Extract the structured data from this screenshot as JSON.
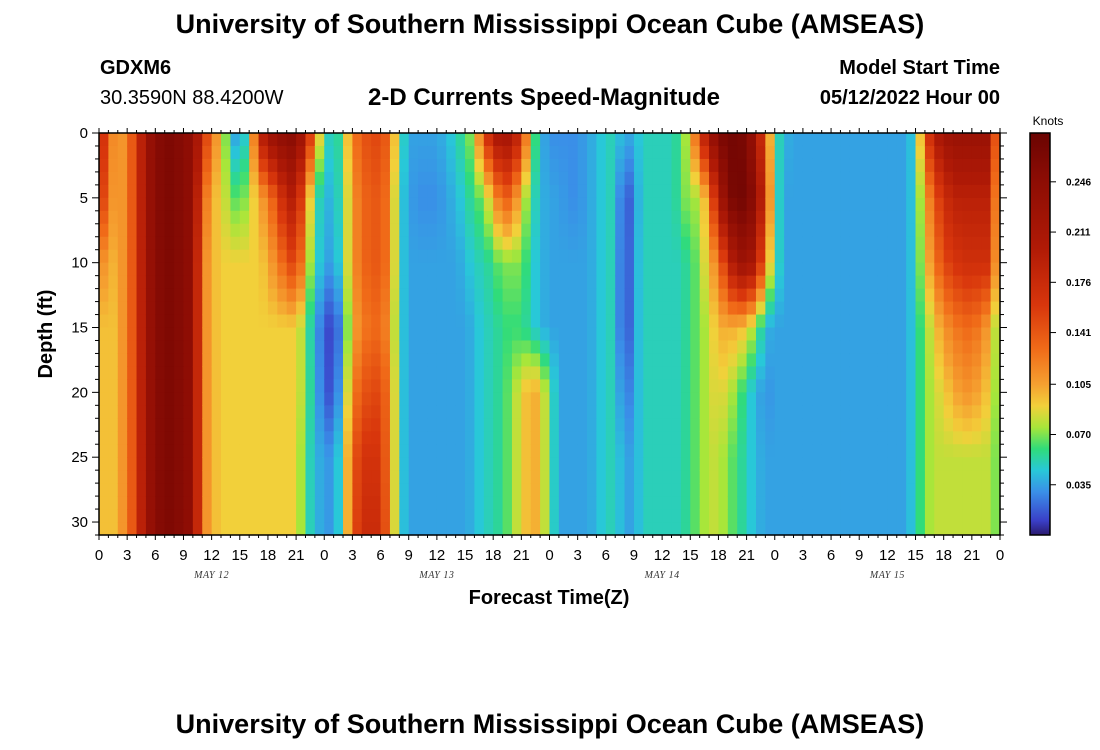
{
  "page": {
    "title": "University of Southern Mississippi Ocean Cube (AMSEAS)",
    "title_repeat": "University of Southern Mississippi Ocean Cube (AMSEAS)",
    "station_id": "GDXM6",
    "coordinates": "30.3590N  88.4200W",
    "model_start_label": "Model Start Time",
    "model_start_value": "05/12/2022 Hour 00"
  },
  "chart_data": {
    "type": "heatmap",
    "title": "2-D Currents Speed-Magnitude",
    "xlabel": "Forecast Time(Z)",
    "ylabel": "Depth (ft)",
    "x_tick_labels": [
      "0",
      "3",
      "6",
      "9",
      "12",
      "15",
      "18",
      "21",
      "0",
      "3",
      "6",
      "9",
      "12",
      "15",
      "18",
      "21",
      "0",
      "3",
      "6",
      "9",
      "12",
      "15",
      "18",
      "21",
      "0",
      "3",
      "6",
      "9",
      "12",
      "15",
      "18",
      "21",
      "0"
    ],
    "x_hours_range": [
      0,
      96
    ],
    "day_labels": [
      {
        "label": "MAY 12",
        "hour": 12
      },
      {
        "label": "MAY 13",
        "hour": 36
      },
      {
        "label": "MAY 14",
        "hour": 60
      },
      {
        "label": "MAY 15",
        "hour": 84
      }
    ],
    "y_ticks": [
      0,
      5,
      10,
      15,
      20,
      25,
      30
    ],
    "y_tick_labels": [
      "0",
      "5",
      "10",
      "15",
      "20",
      "25",
      "30"
    ],
    "ylim": [
      0,
      31
    ],
    "y_inverted": true,
    "colorbar": {
      "unit": "Knots",
      "ticks": [
        0.035,
        0.07,
        0.105,
        0.141,
        0.176,
        0.211,
        0.246
      ],
      "tick_labels": [
        "0.035",
        "0.070",
        "0.105",
        "0.141",
        "0.176",
        "0.211",
        "0.246"
      ],
      "vmin": 0.0,
      "vmax": 0.28
    },
    "colormap_stops": [
      {
        "v": 0.0,
        "color": "#2a1a6e"
      },
      {
        "v": 0.01,
        "color": "#3a3fc8"
      },
      {
        "v": 0.03,
        "color": "#3a8fe8"
      },
      {
        "v": 0.045,
        "color": "#28c8d8"
      },
      {
        "v": 0.06,
        "color": "#30dc7a"
      },
      {
        "v": 0.075,
        "color": "#a8e63a"
      },
      {
        "v": 0.09,
        "color": "#f2d03a"
      },
      {
        "v": 0.105,
        "color": "#f5a030"
      },
      {
        "v": 0.13,
        "color": "#f06a18"
      },
      {
        "v": 0.16,
        "color": "#d8360c"
      },
      {
        "v": 0.2,
        "color": "#b01a06"
      },
      {
        "v": 0.25,
        "color": "#8a0c04"
      },
      {
        "v": 0.28,
        "color": "#6a0402"
      }
    ],
    "depths_ft": [
      0,
      5,
      10,
      15,
      20,
      25,
      31
    ],
    "times_hours": [
      0,
      1,
      2,
      3,
      4,
      5,
      6,
      7,
      8,
      9,
      10,
      11,
      12,
      13,
      14,
      15,
      16,
      17,
      18,
      19,
      20,
      21,
      22,
      23,
      24,
      25,
      26,
      27,
      28,
      29,
      30,
      31,
      32,
      33,
      34,
      35,
      36,
      37,
      38,
      39,
      40,
      41,
      42,
      43,
      44,
      45,
      46,
      47,
      48,
      49,
      50,
      51,
      52,
      53,
      54,
      55,
      56,
      57,
      58,
      59,
      60,
      61,
      62,
      63,
      64,
      65,
      66,
      67,
      68,
      69,
      70,
      71,
      72,
      73,
      74,
      75,
      76,
      77,
      78,
      79,
      80,
      81,
      82,
      83,
      84,
      85,
      86,
      87,
      88,
      89,
      90,
      91,
      92,
      93,
      94,
      95,
      96
    ],
    "speed_knots_by_depth": [
      [
        0.2,
        0.13,
        0.1,
        0.12,
        0.16,
        0.22,
        0.25,
        0.26,
        0.26,
        0.25,
        0.24,
        0.18,
        0.12,
        0.1,
        0.04,
        0.03,
        0.06,
        0.18,
        0.22,
        0.24,
        0.25,
        0.25,
        0.2,
        0.12,
        0.06,
        0.04,
        0.07,
        0.12,
        0.14,
        0.15,
        0.15,
        0.13,
        0.06,
        0.035,
        0.035,
        0.035,
        0.035,
        0.04,
        0.05,
        0.06,
        0.08,
        0.15,
        0.2,
        0.22,
        0.21,
        0.17,
        0.08,
        0.04,
        0.03,
        0.03,
        0.03,
        0.03,
        0.035,
        0.04,
        0.05,
        0.05,
        0.035,
        0.04,
        0.05,
        0.05,
        0.05,
        0.05,
        0.06,
        0.09,
        0.16,
        0.22,
        0.26,
        0.27,
        0.27,
        0.26,
        0.22,
        0.14,
        0.06,
        0.04,
        0.035,
        0.035,
        0.035,
        0.035,
        0.035,
        0.035,
        0.035,
        0.035,
        0.035,
        0.035,
        0.035,
        0.035,
        0.035,
        0.05,
        0.14,
        0.2,
        0.22,
        0.23,
        0.23,
        0.23,
        0.23,
        0.23,
        0.06
      ],
      [
        0.18,
        0.12,
        0.1,
        0.12,
        0.16,
        0.22,
        0.25,
        0.26,
        0.26,
        0.25,
        0.24,
        0.14,
        0.1,
        0.09,
        0.07,
        0.06,
        0.08,
        0.1,
        0.12,
        0.15,
        0.19,
        0.2,
        0.12,
        0.06,
        0.04,
        0.04,
        0.06,
        0.11,
        0.13,
        0.14,
        0.14,
        0.12,
        0.05,
        0.035,
        0.03,
        0.03,
        0.03,
        0.035,
        0.04,
        0.05,
        0.06,
        0.07,
        0.1,
        0.14,
        0.13,
        0.09,
        0.06,
        0.04,
        0.035,
        0.035,
        0.03,
        0.03,
        0.035,
        0.04,
        0.05,
        0.05,
        0.008,
        0.03,
        0.05,
        0.05,
        0.05,
        0.05,
        0.06,
        0.08,
        0.07,
        0.12,
        0.2,
        0.26,
        0.27,
        0.27,
        0.24,
        0.16,
        0.06,
        0.035,
        0.035,
        0.035,
        0.035,
        0.035,
        0.035,
        0.035,
        0.035,
        0.035,
        0.035,
        0.035,
        0.035,
        0.035,
        0.035,
        0.05,
        0.1,
        0.14,
        0.17,
        0.19,
        0.19,
        0.19,
        0.19,
        0.19,
        0.06
      ],
      [
        0.12,
        0.1,
        0.1,
        0.12,
        0.16,
        0.22,
        0.25,
        0.26,
        0.26,
        0.25,
        0.24,
        0.12,
        0.1,
        0.09,
        0.09,
        0.09,
        0.09,
        0.09,
        0.1,
        0.12,
        0.14,
        0.16,
        0.1,
        0.05,
        0.04,
        0.03,
        0.06,
        0.11,
        0.13,
        0.14,
        0.14,
        0.12,
        0.05,
        0.035,
        0.035,
        0.035,
        0.035,
        0.035,
        0.035,
        0.04,
        0.05,
        0.05,
        0.06,
        0.07,
        0.07,
        0.07,
        0.05,
        0.04,
        0.035,
        0.035,
        0.035,
        0.035,
        0.035,
        0.04,
        0.05,
        0.05,
        0.005,
        0.035,
        0.05,
        0.05,
        0.05,
        0.05,
        0.05,
        0.06,
        0.07,
        0.1,
        0.12,
        0.18,
        0.22,
        0.23,
        0.2,
        0.12,
        0.06,
        0.035,
        0.035,
        0.035,
        0.035,
        0.035,
        0.035,
        0.035,
        0.035,
        0.035,
        0.035,
        0.035,
        0.035,
        0.035,
        0.035,
        0.05,
        0.09,
        0.12,
        0.15,
        0.16,
        0.17,
        0.17,
        0.17,
        0.17,
        0.06
      ],
      [
        0.1,
        0.09,
        0.1,
        0.12,
        0.16,
        0.22,
        0.25,
        0.26,
        0.26,
        0.25,
        0.24,
        0.12,
        0.1,
        0.09,
        0.09,
        0.09,
        0.09,
        0.09,
        0.09,
        0.09,
        0.09,
        0.09,
        0.07,
        0.035,
        0.02,
        0.005,
        0.04,
        0.1,
        0.12,
        0.13,
        0.13,
        0.11,
        0.05,
        0.035,
        0.035,
        0.035,
        0.035,
        0.035,
        0.035,
        0.035,
        0.04,
        0.05,
        0.05,
        0.06,
        0.06,
        0.06,
        0.05,
        0.04,
        0.035,
        0.035,
        0.035,
        0.035,
        0.035,
        0.04,
        0.05,
        0.05,
        0.005,
        0.035,
        0.05,
        0.05,
        0.05,
        0.05,
        0.05,
        0.06,
        0.07,
        0.08,
        0.1,
        0.1,
        0.1,
        0.09,
        0.07,
        0.04,
        0.035,
        0.035,
        0.035,
        0.035,
        0.035,
        0.035,
        0.035,
        0.035,
        0.035,
        0.035,
        0.035,
        0.035,
        0.035,
        0.035,
        0.035,
        0.05,
        0.07,
        0.09,
        0.11,
        0.12,
        0.13,
        0.13,
        0.12,
        0.1,
        0.06
      ],
      [
        0.1,
        0.09,
        0.1,
        0.12,
        0.16,
        0.22,
        0.25,
        0.26,
        0.26,
        0.25,
        0.24,
        0.12,
        0.1,
        0.09,
        0.09,
        0.09,
        0.09,
        0.09,
        0.09,
        0.09,
        0.09,
        0.09,
        0.07,
        0.04,
        0.02,
        0.01,
        0.05,
        0.12,
        0.14,
        0.15,
        0.15,
        0.12,
        0.05,
        0.035,
        0.035,
        0.035,
        0.035,
        0.035,
        0.035,
        0.035,
        0.04,
        0.05,
        0.05,
        0.06,
        0.07,
        0.09,
        0.1,
        0.1,
        0.06,
        0.035,
        0.035,
        0.035,
        0.035,
        0.04,
        0.05,
        0.05,
        0.02,
        0.035,
        0.05,
        0.05,
        0.05,
        0.05,
        0.05,
        0.06,
        0.07,
        0.08,
        0.09,
        0.08,
        0.07,
        0.05,
        0.04,
        0.03,
        0.035,
        0.035,
        0.035,
        0.035,
        0.035,
        0.035,
        0.035,
        0.035,
        0.035,
        0.035,
        0.035,
        0.035,
        0.035,
        0.035,
        0.035,
        0.05,
        0.07,
        0.08,
        0.09,
        0.1,
        0.11,
        0.11,
        0.1,
        0.09,
        0.06
      ],
      [
        0.1,
        0.09,
        0.1,
        0.12,
        0.16,
        0.22,
        0.25,
        0.26,
        0.26,
        0.25,
        0.24,
        0.12,
        0.1,
        0.09,
        0.09,
        0.09,
        0.09,
        0.09,
        0.09,
        0.09,
        0.09,
        0.09,
        0.06,
        0.04,
        0.035,
        0.03,
        0.06,
        0.14,
        0.16,
        0.17,
        0.16,
        0.12,
        0.05,
        0.035,
        0.035,
        0.035,
        0.035,
        0.035,
        0.035,
        0.035,
        0.04,
        0.05,
        0.05,
        0.06,
        0.07,
        0.09,
        0.1,
        0.1,
        0.06,
        0.035,
        0.035,
        0.035,
        0.035,
        0.04,
        0.05,
        0.05,
        0.035,
        0.035,
        0.05,
        0.05,
        0.05,
        0.05,
        0.05,
        0.06,
        0.07,
        0.08,
        0.08,
        0.07,
        0.06,
        0.05,
        0.04,
        0.035,
        0.035,
        0.035,
        0.035,
        0.035,
        0.035,
        0.035,
        0.035,
        0.035,
        0.035,
        0.035,
        0.035,
        0.035,
        0.035,
        0.035,
        0.035,
        0.05,
        0.07,
        0.08,
        0.08,
        0.08,
        0.08,
        0.08,
        0.08,
        0.08,
        0.06
      ],
      [
        0.1,
        0.09,
        0.1,
        0.12,
        0.16,
        0.22,
        0.25,
        0.26,
        0.26,
        0.25,
        0.24,
        0.12,
        0.1,
        0.09,
        0.09,
        0.09,
        0.09,
        0.09,
        0.09,
        0.09,
        0.09,
        0.09,
        0.06,
        0.04,
        0.035,
        0.03,
        0.06,
        0.14,
        0.17,
        0.18,
        0.17,
        0.12,
        0.05,
        0.035,
        0.035,
        0.035,
        0.035,
        0.035,
        0.035,
        0.035,
        0.04,
        0.05,
        0.05,
        0.06,
        0.07,
        0.09,
        0.1,
        0.1,
        0.06,
        0.035,
        0.035,
        0.035,
        0.035,
        0.04,
        0.05,
        0.05,
        0.035,
        0.035,
        0.05,
        0.05,
        0.05,
        0.05,
        0.05,
        0.06,
        0.07,
        0.08,
        0.08,
        0.07,
        0.06,
        0.05,
        0.04,
        0.035,
        0.035,
        0.035,
        0.035,
        0.035,
        0.035,
        0.035,
        0.035,
        0.035,
        0.035,
        0.035,
        0.035,
        0.035,
        0.035,
        0.035,
        0.035,
        0.05,
        0.07,
        0.08,
        0.08,
        0.08,
        0.08,
        0.08,
        0.08,
        0.08,
        0.06
      ]
    ]
  }
}
